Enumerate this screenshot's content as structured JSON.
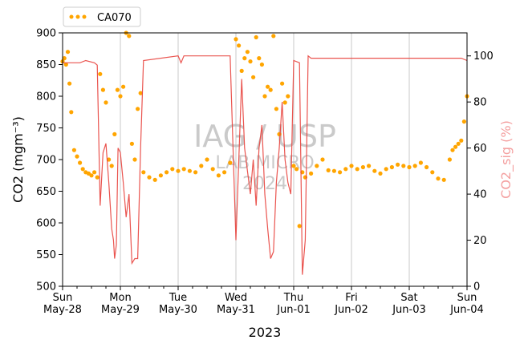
{
  "chart_data": {
    "type": "line",
    "xlabel": "2023",
    "ylabel": "CO2 (mgm⁻³)",
    "y2label": "CO2_sig (%)",
    "ylim": [
      500,
      900
    ],
    "y2lim": [
      0,
      110
    ],
    "yticks": [
      500,
      550,
      600,
      650,
      700,
      750,
      800,
      850,
      900
    ],
    "y2ticks": [
      0,
      20,
      40,
      60,
      80,
      100
    ],
    "xrange": [
      0,
      7
    ],
    "x_ticks": [
      {
        "line1": "Sun",
        "line2": "May-28",
        "day": 0
      },
      {
        "line1": "Mon",
        "line2": "May-29",
        "day": 1
      },
      {
        "line1": "Tue",
        "line2": "May-30",
        "day": 2
      },
      {
        "line1": "Wed",
        "line2": "May-31",
        "day": 3
      },
      {
        "line1": "Thu",
        "line2": "Jun-01",
        "day": 4
      },
      {
        "line1": "Fri",
        "line2": "Jun-02",
        "day": 5
      },
      {
        "line1": "Sat",
        "line2": "Jun-03",
        "day": 6
      },
      {
        "line1": "Sun",
        "line2": "Jun-04",
        "day": 7
      }
    ],
    "grid": "vertical",
    "legend_position": "top-left",
    "series": [
      {
        "name": "CA070",
        "axis": "left",
        "style": "dots",
        "color": "#ffa500",
        "points": [
          [
            0.0,
            855
          ],
          [
            0.03,
            860
          ],
          [
            0.06,
            850
          ],
          [
            0.09,
            870
          ],
          [
            0.12,
            820
          ],
          [
            0.15,
            775
          ],
          [
            0.2,
            715
          ],
          [
            0.25,
            705
          ],
          [
            0.3,
            695
          ],
          [
            0.35,
            685
          ],
          [
            0.4,
            680
          ],
          [
            0.45,
            678
          ],
          [
            0.5,
            675
          ],
          [
            0.55,
            680
          ],
          [
            0.6,
            672
          ],
          [
            0.65,
            835
          ],
          [
            0.7,
            810
          ],
          [
            0.75,
            790
          ],
          [
            0.8,
            700
          ],
          [
            0.85,
            690
          ],
          [
            0.9,
            740
          ],
          [
            0.95,
            810
          ],
          [
            1.0,
            800
          ],
          [
            1.05,
            815
          ],
          [
            1.1,
            900
          ],
          [
            1.15,
            895
          ],
          [
            1.2,
            725
          ],
          [
            1.25,
            700
          ],
          [
            1.3,
            780
          ],
          [
            1.35,
            805
          ],
          [
            1.4,
            680
          ],
          [
            1.5,
            672
          ],
          [
            1.6,
            668
          ],
          [
            1.7,
            675
          ],
          [
            1.8,
            680
          ],
          [
            1.9,
            685
          ],
          [
            2.0,
            682
          ],
          [
            2.1,
            685
          ],
          [
            2.2,
            682
          ],
          [
            2.3,
            680
          ],
          [
            2.4,
            690
          ],
          [
            2.5,
            700
          ],
          [
            2.6,
            685
          ],
          [
            2.7,
            675
          ],
          [
            2.8,
            680
          ],
          [
            2.9,
            695
          ],
          [
            3.0,
            890
          ],
          [
            3.05,
            880
          ],
          [
            3.1,
            840
          ],
          [
            3.15,
            860
          ],
          [
            3.2,
            870
          ],
          [
            3.25,
            855
          ],
          [
            3.3,
            830
          ],
          [
            3.35,
            893
          ],
          [
            3.4,
            860
          ],
          [
            3.45,
            850
          ],
          [
            3.5,
            800
          ],
          [
            3.55,
            815
          ],
          [
            3.6,
            810
          ],
          [
            3.65,
            895
          ],
          [
            3.7,
            780
          ],
          [
            3.75,
            740
          ],
          [
            3.8,
            820
          ],
          [
            3.85,
            790
          ],
          [
            3.9,
            800
          ],
          [
            4.0,
            690
          ],
          [
            4.05,
            685
          ],
          [
            4.1,
            595
          ],
          [
            4.15,
            680
          ],
          [
            4.2,
            672
          ],
          [
            4.3,
            678
          ],
          [
            4.4,
            690
          ],
          [
            4.5,
            700
          ],
          [
            4.6,
            683
          ],
          [
            4.7,
            682
          ],
          [
            4.8,
            680
          ],
          [
            4.9,
            685
          ],
          [
            5.0,
            690
          ],
          [
            5.1,
            685
          ],
          [
            5.2,
            688
          ],
          [
            5.3,
            690
          ],
          [
            5.4,
            682
          ],
          [
            5.5,
            678
          ],
          [
            5.6,
            685
          ],
          [
            5.7,
            688
          ],
          [
            5.8,
            692
          ],
          [
            5.9,
            690
          ],
          [
            6.0,
            688
          ],
          [
            6.1,
            690
          ],
          [
            6.2,
            695
          ],
          [
            6.3,
            688
          ],
          [
            6.4,
            680
          ],
          [
            6.5,
            670
          ],
          [
            6.6,
            668
          ],
          [
            6.7,
            700
          ],
          [
            6.75,
            715
          ],
          [
            6.8,
            720
          ],
          [
            6.85,
            725
          ],
          [
            6.9,
            730
          ],
          [
            6.95,
            760
          ],
          [
            7.0,
            800
          ]
        ]
      },
      {
        "name": "",
        "axis": "right",
        "style": "line",
        "color": "#e8413c",
        "points": [
          [
            0.0,
            97
          ],
          [
            0.3,
            97
          ],
          [
            0.4,
            98
          ],
          [
            0.55,
            97
          ],
          [
            0.6,
            96
          ],
          [
            0.65,
            35
          ],
          [
            0.7,
            58
          ],
          [
            0.75,
            62
          ],
          [
            0.8,
            45
          ],
          [
            0.85,
            25
          ],
          [
            0.88,
            20
          ],
          [
            0.9,
            12
          ],
          [
            0.93,
            18
          ],
          [
            0.96,
            60
          ],
          [
            1.0,
            58
          ],
          [
            1.05,
            45
          ],
          [
            1.1,
            30
          ],
          [
            1.15,
            40
          ],
          [
            1.2,
            10
          ],
          [
            1.25,
            12
          ],
          [
            1.3,
            12
          ],
          [
            1.35,
            60
          ],
          [
            1.4,
            98
          ],
          [
            2.0,
            100
          ],
          [
            2.05,
            97
          ],
          [
            2.1,
            100
          ],
          [
            2.9,
            100
          ],
          [
            2.95,
            60
          ],
          [
            3.0,
            20
          ],
          [
            3.05,
            55
          ],
          [
            3.1,
            90
          ],
          [
            3.15,
            60
          ],
          [
            3.2,
            50
          ],
          [
            3.25,
            40
          ],
          [
            3.3,
            55
          ],
          [
            3.35,
            35
          ],
          [
            3.4,
            60
          ],
          [
            3.45,
            70
          ],
          [
            3.5,
            40
          ],
          [
            3.55,
            25
          ],
          [
            3.6,
            12
          ],
          [
            3.65,
            15
          ],
          [
            3.7,
            45
          ],
          [
            3.75,
            60
          ],
          [
            3.8,
            80
          ],
          [
            3.85,
            55
          ],
          [
            3.9,
            45
          ],
          [
            3.95,
            40
          ],
          [
            4.0,
            98
          ],
          [
            4.1,
            97
          ],
          [
            4.15,
            5
          ],
          [
            4.2,
            20
          ],
          [
            4.25,
            100
          ],
          [
            4.3,
            99
          ],
          [
            6.9,
            99
          ],
          [
            7.0,
            98
          ]
        ]
      }
    ],
    "watermark": {
      "line1": "IAG / USP",
      "line2": "LAB MICRO",
      "line3": "2024"
    }
  }
}
